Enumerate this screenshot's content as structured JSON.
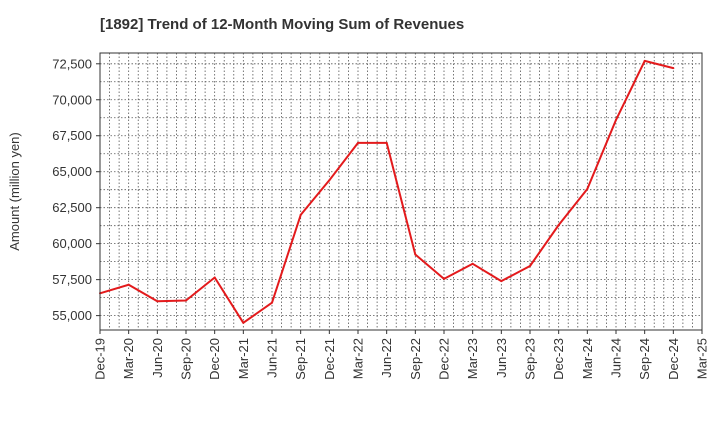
{
  "chart_data": {
    "type": "line",
    "title": "[1892]  Trend of 12-Month Moving Sum of Revenues",
    "xlabel": "",
    "ylabel": "Amount (million yen)",
    "ylim": [
      54000,
      73250
    ],
    "yticks": [
      55000,
      57500,
      60000,
      62500,
      65000,
      67500,
      70000,
      72500
    ],
    "ytick_labels": [
      "55,000",
      "57,500",
      "60,000",
      "62,500",
      "65,000",
      "67,500",
      "70,000",
      "72,500"
    ],
    "categories": [
      "Dec-19",
      "Mar-20",
      "Jun-20",
      "Sep-20",
      "Dec-20",
      "Mar-21",
      "Jun-21",
      "Sep-21",
      "Dec-21",
      "Mar-22",
      "Jun-22",
      "Sep-22",
      "Dec-22",
      "Mar-23",
      "Jun-23",
      "Sep-23",
      "Dec-23",
      "Mar-24",
      "Jun-24",
      "Sep-24",
      "Dec-24",
      "Mar-25"
    ],
    "grid": true,
    "series": [
      {
        "color": "#e31a1c",
        "values": [
          56550,
          57150,
          56000,
          56050,
          57650,
          54500,
          55900,
          62000,
          64400,
          67000,
          67000,
          59250,
          57550,
          58600,
          57400,
          58450,
          61300,
          63800,
          68600,
          72700,
          72200,
          null
        ]
      }
    ]
  }
}
